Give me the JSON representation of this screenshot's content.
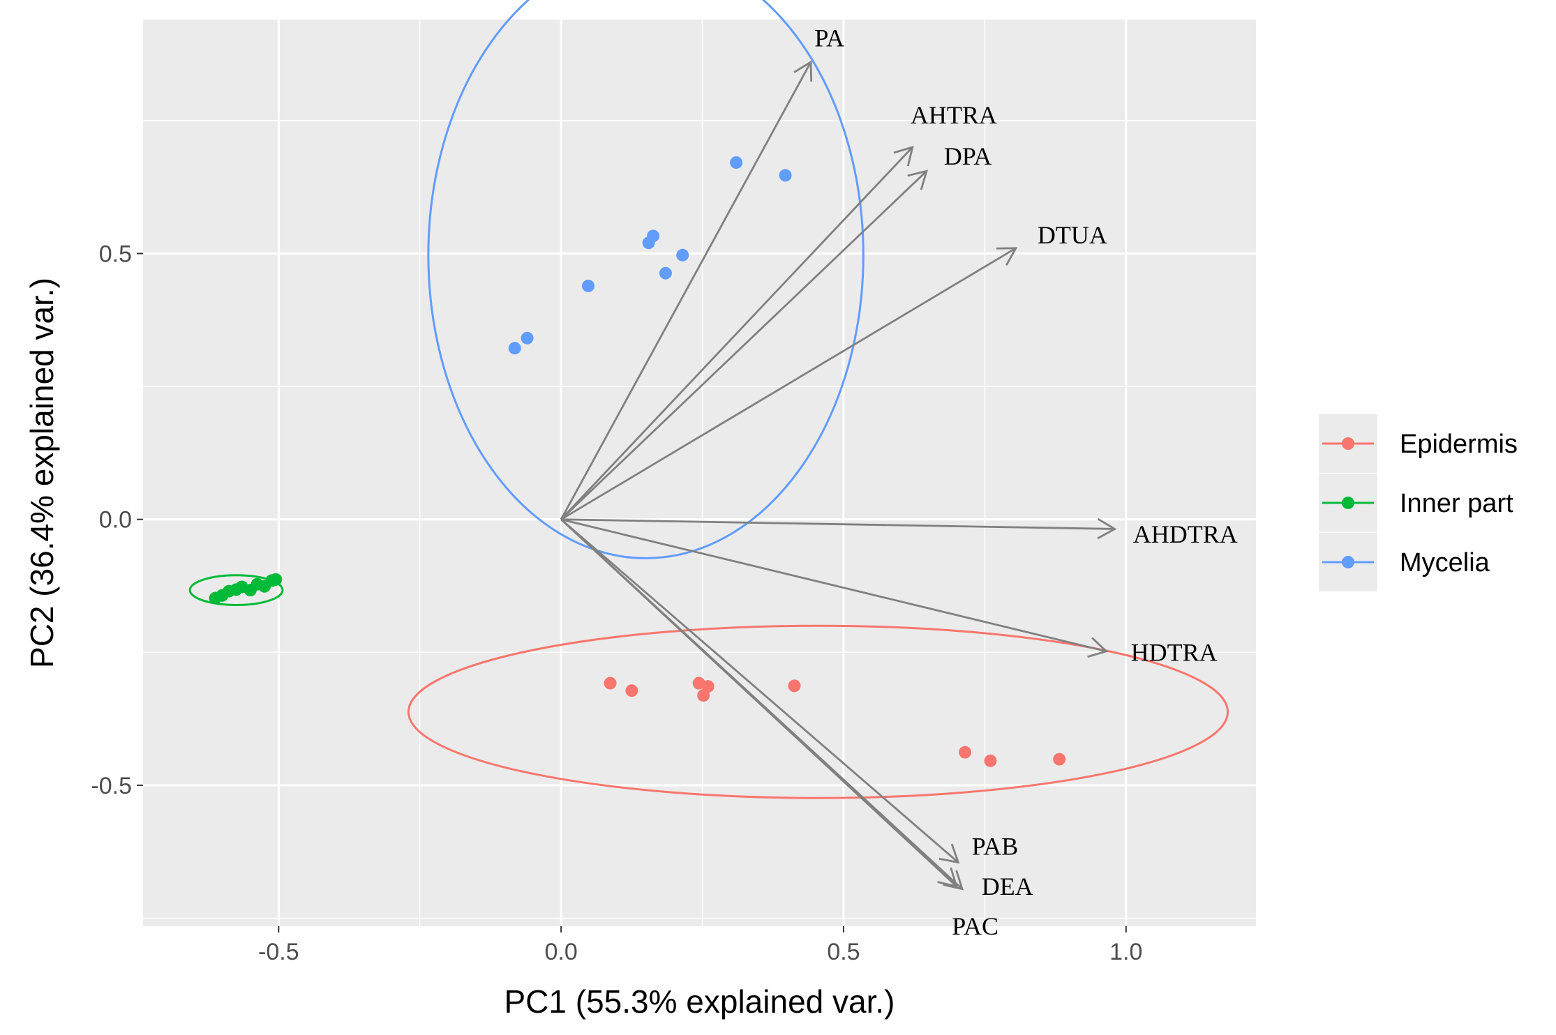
{
  "chart_data": {
    "type": "scatter",
    "title": "",
    "xlabel": "PC1 (55.3% explained var.)",
    "ylabel": "PC2 (36.4% explained var.)",
    "xlim": [
      -0.74,
      1.23
    ],
    "ylim": [
      -0.765,
      0.94
    ],
    "x_ticks": [
      -0.5,
      0.0,
      0.5,
      1.0
    ],
    "x_tick_labels": [
      "-0.5",
      "0.0",
      "0.5",
      "1.0"
    ],
    "y_ticks": [
      -0.5,
      0.0,
      0.5
    ],
    "y_tick_labels": [
      "-0.5",
      "0.0",
      "0.5"
    ],
    "grid": true,
    "legend_position": "right",
    "series": [
      {
        "name": "Epidermis",
        "color": "#F8766D",
        "x": [
          0.087,
          0.125,
          0.244,
          0.26,
          0.252,
          0.413,
          0.715,
          0.76,
          0.882
        ],
        "y": [
          -0.308,
          -0.322,
          -0.308,
          -0.314,
          -0.331,
          -0.313,
          -0.438,
          -0.454,
          -0.451
        ],
        "ellipse": {
          "center": [
            0.455,
            -0.362
          ],
          "radii": [
            0.725,
            0.162
          ]
        }
      },
      {
        "name": "Inner part",
        "color": "#00BA38",
        "x": [
          -0.612,
          -0.6,
          -0.588,
          -0.575,
          -0.565,
          -0.55,
          -0.538,
          -0.525,
          -0.512,
          -0.505
        ],
        "y": [
          -0.148,
          -0.143,
          -0.135,
          -0.132,
          -0.127,
          -0.133,
          -0.122,
          -0.126,
          -0.115,
          -0.113
        ],
        "ellipse": {
          "center": [
            -0.575,
            -0.133
          ],
          "radii": [
            0.082,
            0.028
          ]
        }
      },
      {
        "name": "Mycelia",
        "color": "#619CFF",
        "x": [
          -0.082,
          -0.06,
          0.048,
          0.155,
          0.163,
          0.185,
          0.215,
          0.31,
          0.397
        ],
        "y": [
          0.322,
          0.341,
          0.439,
          0.52,
          0.533,
          0.463,
          0.497,
          0.671,
          0.647
        ],
        "ellipse": {
          "center": [
            0.15,
            0.497
          ],
          "radii": [
            0.385,
            0.57
          ]
        }
      }
    ],
    "loadings": [
      {
        "label": "PA",
        "x": 0.442,
        "y": 0.86
      },
      {
        "label": "AHTRA",
        "x": 0.622,
        "y": 0.7
      },
      {
        "label": "DPA",
        "x": 0.647,
        "y": 0.655
      },
      {
        "label": "DTUA",
        "x": 0.805,
        "y": 0.51
      },
      {
        "label": "AHDTRA",
        "x": 0.98,
        "y": -0.018
      },
      {
        "label": "HDTRA",
        "x": 0.965,
        "y": -0.248
      },
      {
        "label": "PAB",
        "x": 0.703,
        "y": -0.645
      },
      {
        "label": "DEA",
        "x": 0.71,
        "y": -0.695
      },
      {
        "label": "PAC",
        "x": 0.7,
        "y": -0.69
      }
    ],
    "loading_label_positions": {
      "PA": [
        0.475,
        0.905
      ],
      "AHTRA": [
        0.695,
        0.76
      ],
      "DPA": [
        0.72,
        0.683
      ],
      "DTUA": [
        0.905,
        0.535
      ],
      "AHDTRA": [
        1.105,
        -0.028
      ],
      "HDTRA": [
        1.085,
        -0.25
      ],
      "PAB": [
        0.768,
        -0.615
      ],
      "DEA": [
        0.79,
        -0.69
      ],
      "PAC": [
        0.733,
        -0.765
      ]
    },
    "loading_color": "#808080"
  }
}
